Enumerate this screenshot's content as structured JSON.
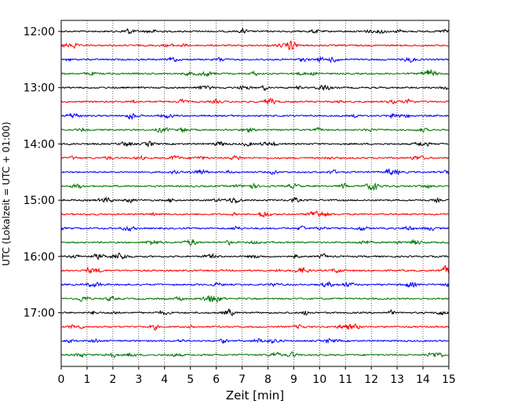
{
  "chart_data": {
    "type": "line",
    "title": "",
    "xlabel": "Zeit  [min]",
    "ylabel": "UTC (Lokalzeit = UTC + 01:00)",
    "xlim": [
      0,
      15
    ],
    "x_ticks": [
      "0",
      "1",
      "2",
      "3",
      "4",
      "5",
      "6",
      "7",
      "8",
      "9",
      "10",
      "11",
      "12",
      "13",
      "14",
      "15"
    ],
    "y_ticks": [
      "12:00",
      "13:00",
      "14:00",
      "15:00",
      "16:00",
      "17:00"
    ],
    "grid": "vertical dotted at each minute",
    "trace_minutes": 15,
    "colors": [
      "#000000",
      "#ff0000",
      "#0000ff",
      "#007800"
    ],
    "series": [
      {
        "start": "12:00",
        "color": "#000000"
      },
      {
        "start": "12:15",
        "color": "#ff0000"
      },
      {
        "start": "12:30",
        "color": "#0000ff"
      },
      {
        "start": "12:45",
        "color": "#007800"
      },
      {
        "start": "13:00",
        "color": "#000000"
      },
      {
        "start": "13:15",
        "color": "#ff0000"
      },
      {
        "start": "13:30",
        "color": "#0000ff"
      },
      {
        "start": "13:45",
        "color": "#007800"
      },
      {
        "start": "14:00",
        "color": "#000000"
      },
      {
        "start": "14:15",
        "color": "#ff0000"
      },
      {
        "start": "14:30",
        "color": "#0000ff"
      },
      {
        "start": "14:45",
        "color": "#007800"
      },
      {
        "start": "15:00",
        "color": "#000000"
      },
      {
        "start": "15:15",
        "color": "#ff0000"
      },
      {
        "start": "15:30",
        "color": "#0000ff"
      },
      {
        "start": "15:45",
        "color": "#007800"
      },
      {
        "start": "16:00",
        "color": "#000000"
      },
      {
        "start": "16:15",
        "color": "#ff0000"
      },
      {
        "start": "16:30",
        "color": "#0000ff"
      },
      {
        "start": "16:45",
        "color": "#007800"
      },
      {
        "start": "17:00",
        "color": "#000000"
      },
      {
        "start": "17:15",
        "color": "#ff0000"
      },
      {
        "start": "17:30",
        "color": "#0000ff"
      },
      {
        "start": "17:45",
        "color": "#007800"
      }
    ]
  }
}
